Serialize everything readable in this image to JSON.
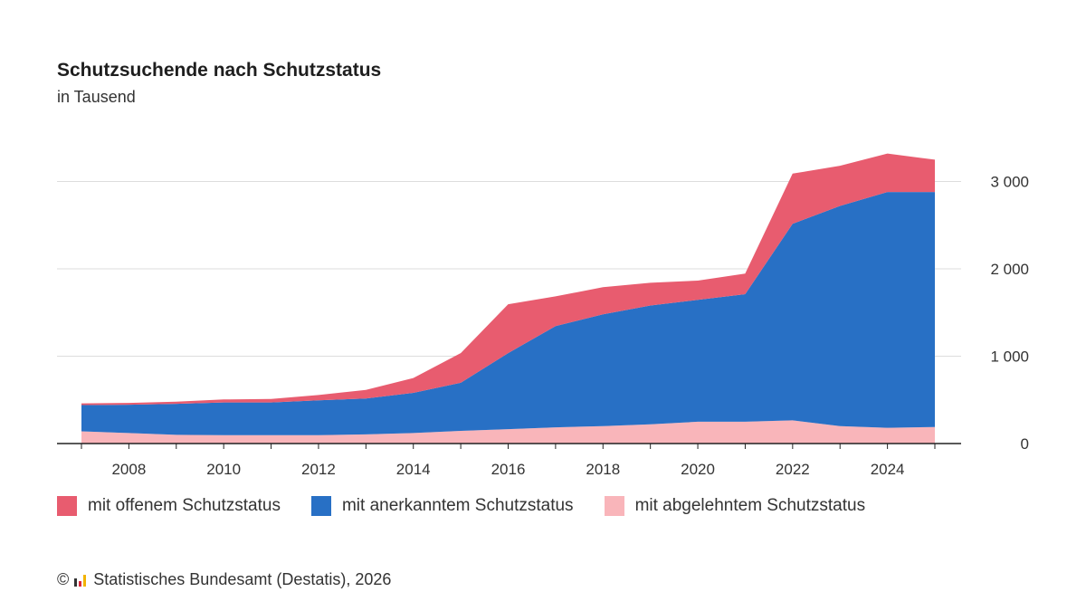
{
  "header": {
    "title": "Schutzsuchende nach Schutzstatus",
    "subtitle": "in Tausend"
  },
  "footer": {
    "copyright_symbol": "©",
    "source": "Statistisches Bundesamt (Destatis), 2026"
  },
  "colors": {
    "offen": "#e85c6f",
    "anerkannt": "#2870c5",
    "abgelehnt": "#f9b5ba",
    "grid": "#dddddd",
    "axis": "#222222"
  },
  "legend": [
    {
      "label": "mit offenem Schutzstatus",
      "color": "#e85c6f"
    },
    {
      "label": "mit anerkanntem Schutzstatus",
      "color": "#2870c5"
    },
    {
      "label": "mit abgelehntem Schutzstatus",
      "color": "#f9b5ba"
    }
  ],
  "chart_data": {
    "type": "area",
    "stacked": true,
    "x": [
      2007,
      2008,
      2009,
      2010,
      2011,
      2012,
      2013,
      2014,
      2015,
      2016,
      2017,
      2018,
      2019,
      2020,
      2021,
      2022,
      2023,
      2024,
      2025
    ],
    "series": [
      {
        "name": "mit abgelehntem Schutzstatus",
        "color": "#f9b5ba",
        "values": [
          140,
          120,
          100,
          95,
          95,
          95,
          105,
          120,
          145,
          165,
          185,
          200,
          220,
          250,
          250,
          265,
          200,
          180,
          190
        ]
      },
      {
        "name": "mit anerkanntem Schutzstatus",
        "color": "#2870c5",
        "values": [
          300,
          325,
          355,
          375,
          375,
          400,
          410,
          460,
          550,
          870,
          1160,
          1280,
          1360,
          1395,
          1460,
          2250,
          2520,
          2700,
          2690
        ]
      },
      {
        "name": "mit offenem Schutzstatus",
        "color": "#e85c6f",
        "values": [
          20,
          20,
          25,
          35,
          40,
          60,
          100,
          170,
          340,
          560,
          340,
          310,
          260,
          220,
          235,
          575,
          460,
          440,
          370
        ]
      }
    ],
    "x_ticks": [
      "2008",
      "2010",
      "2012",
      "2014",
      "2016",
      "2018",
      "2020",
      "2022",
      "2024"
    ],
    "x_tick_values": [
      2008,
      2010,
      2012,
      2014,
      2016,
      2018,
      2020,
      2022,
      2024
    ],
    "y_ticks": [
      "0",
      "1 000",
      "2 000",
      "3 000"
    ],
    "y_tick_values": [
      0,
      1000,
      2000,
      3000
    ],
    "ylim": [
      0,
      3500
    ],
    "xlim": [
      2007,
      2025
    ],
    "y_axis_side": "right",
    "grid": true,
    "legend_position": "bottom"
  }
}
